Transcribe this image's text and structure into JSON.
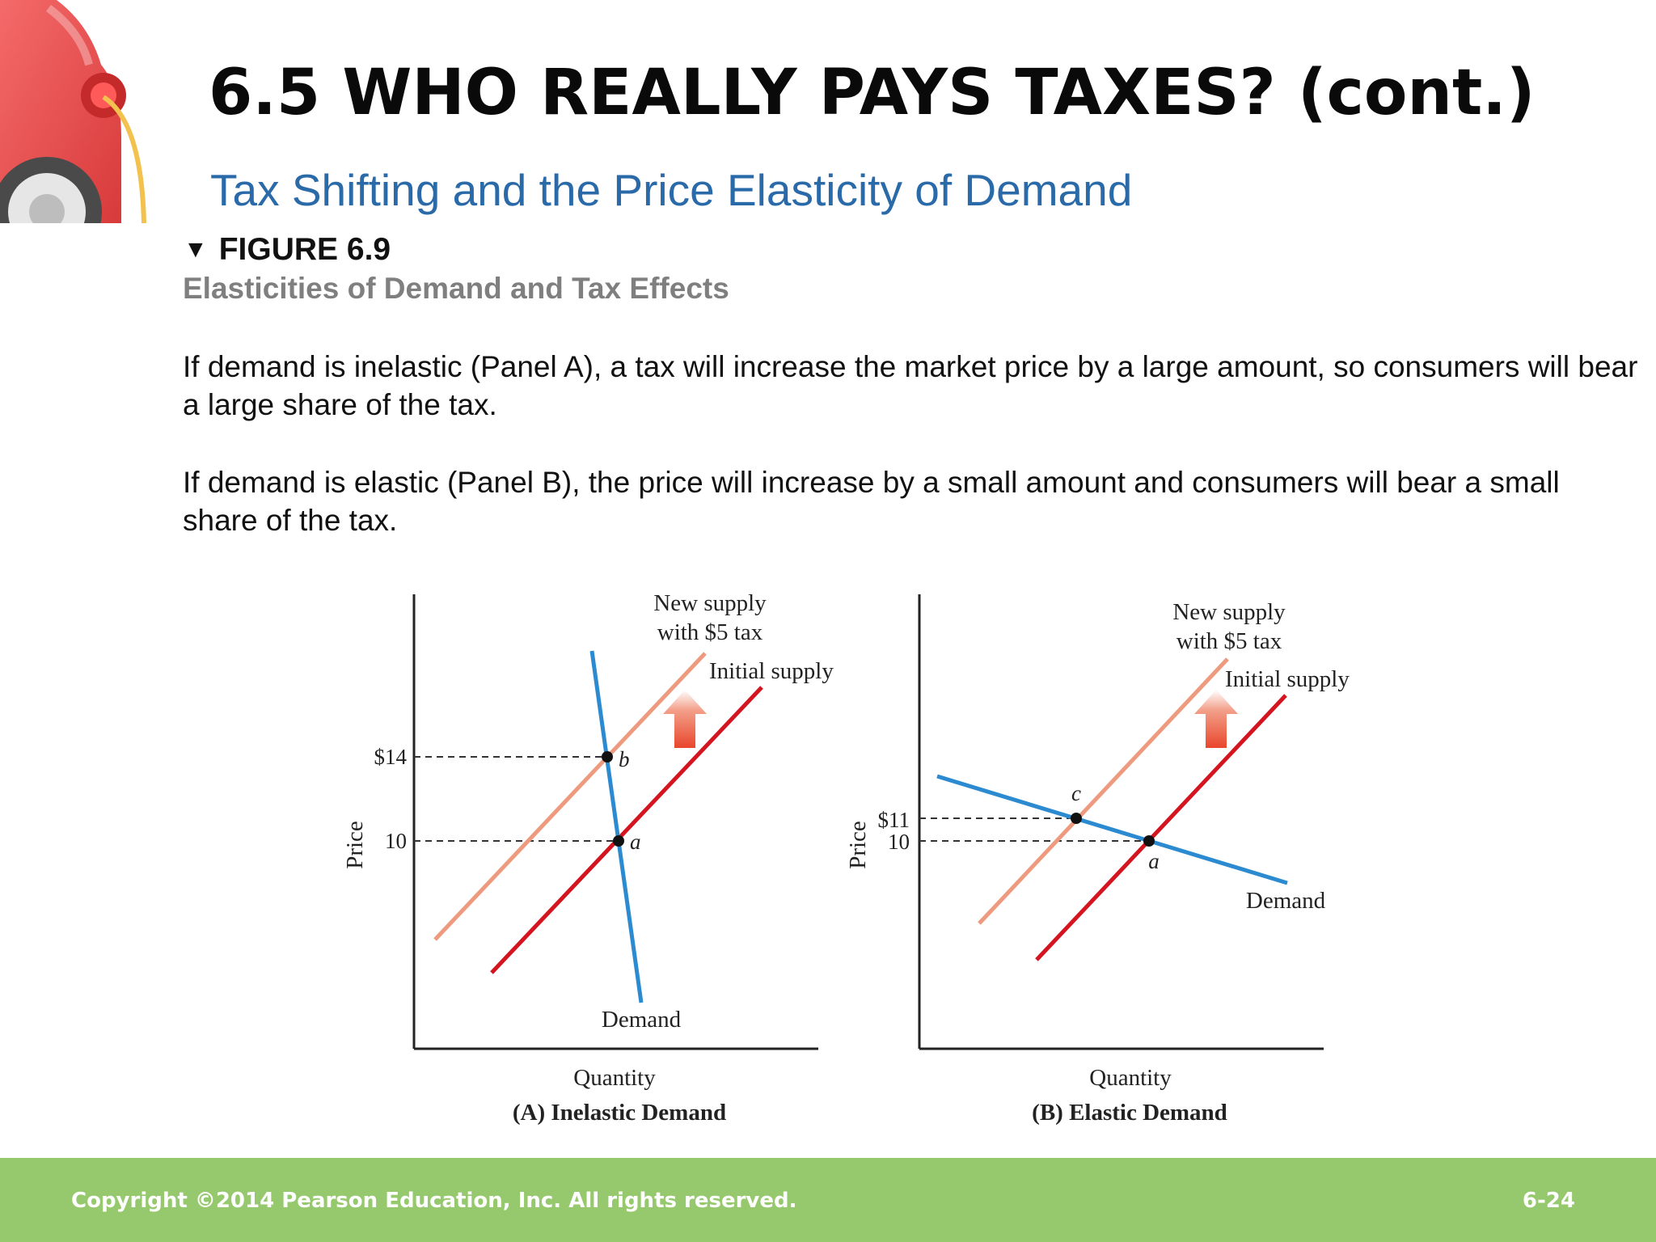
{
  "slide": {
    "title": "6.5 WHO REALLY PAYS TAXES? (cont.)",
    "subtitle": "Tax Shifting and the Price Elasticity of Demand",
    "figure_marker": "▼",
    "figure_number": "FIGURE 6.9",
    "figure_title": "Elasticities of Demand and Tax Effects",
    "paragraphs": [
      "If demand is inelastic (Panel A), a tax will increase the market price by a large amount, so consumers will bear a large share of the tax.",
      "If demand is elastic (Panel B), the price will increase by a small amount and consumers will bear a small share of the tax."
    ],
    "decorative_image": "car-with-charging-cable"
  },
  "colors": {
    "title": "#0a0a0a",
    "subtitle": "#2a6aa8",
    "figure_title": "#7f7f7f",
    "demand": "#2b8ad0",
    "initial_supply": "#d4141f",
    "new_supply": "#ee9a7e",
    "arrow": "#e8462c",
    "footer_bg": "#96c96d",
    "footer_text": "#ffffff"
  },
  "chart_data": [
    {
      "type": "line",
      "panel_label": "(A) Inelastic Demand",
      "xlabel": "Quantity",
      "ylabel": "Price",
      "y_ticks": [
        "$14",
        "10"
      ],
      "series": [
        {
          "name": "Demand",
          "label": "Demand"
        },
        {
          "name": "Initial supply",
          "label": "Initial supply"
        },
        {
          "name": "New supply with $5 tax",
          "label_lines": [
            "New supply",
            "with $5 tax"
          ]
        }
      ],
      "points": [
        {
          "label": "a",
          "price": 10
        },
        {
          "label": "b",
          "price": 14
        }
      ],
      "tax_arrow": "up"
    },
    {
      "type": "line",
      "panel_label": "(B) Elastic Demand",
      "xlabel": "Quantity",
      "ylabel": "Price",
      "y_ticks": [
        "$11",
        "10"
      ],
      "series": [
        {
          "name": "Demand",
          "label": "Demand"
        },
        {
          "name": "Initial supply",
          "label": "Initial supply"
        },
        {
          "name": "New supply with $5 tax",
          "label_lines": [
            "New supply",
            "with $5 tax"
          ]
        }
      ],
      "points": [
        {
          "label": "a",
          "price": 10
        },
        {
          "label": "c",
          "price": 11
        }
      ],
      "tax_arrow": "up"
    }
  ],
  "footer": {
    "copyright": "Copyright ©2014 Pearson Education, Inc. All rights reserved.",
    "slide_number": "6-24"
  }
}
